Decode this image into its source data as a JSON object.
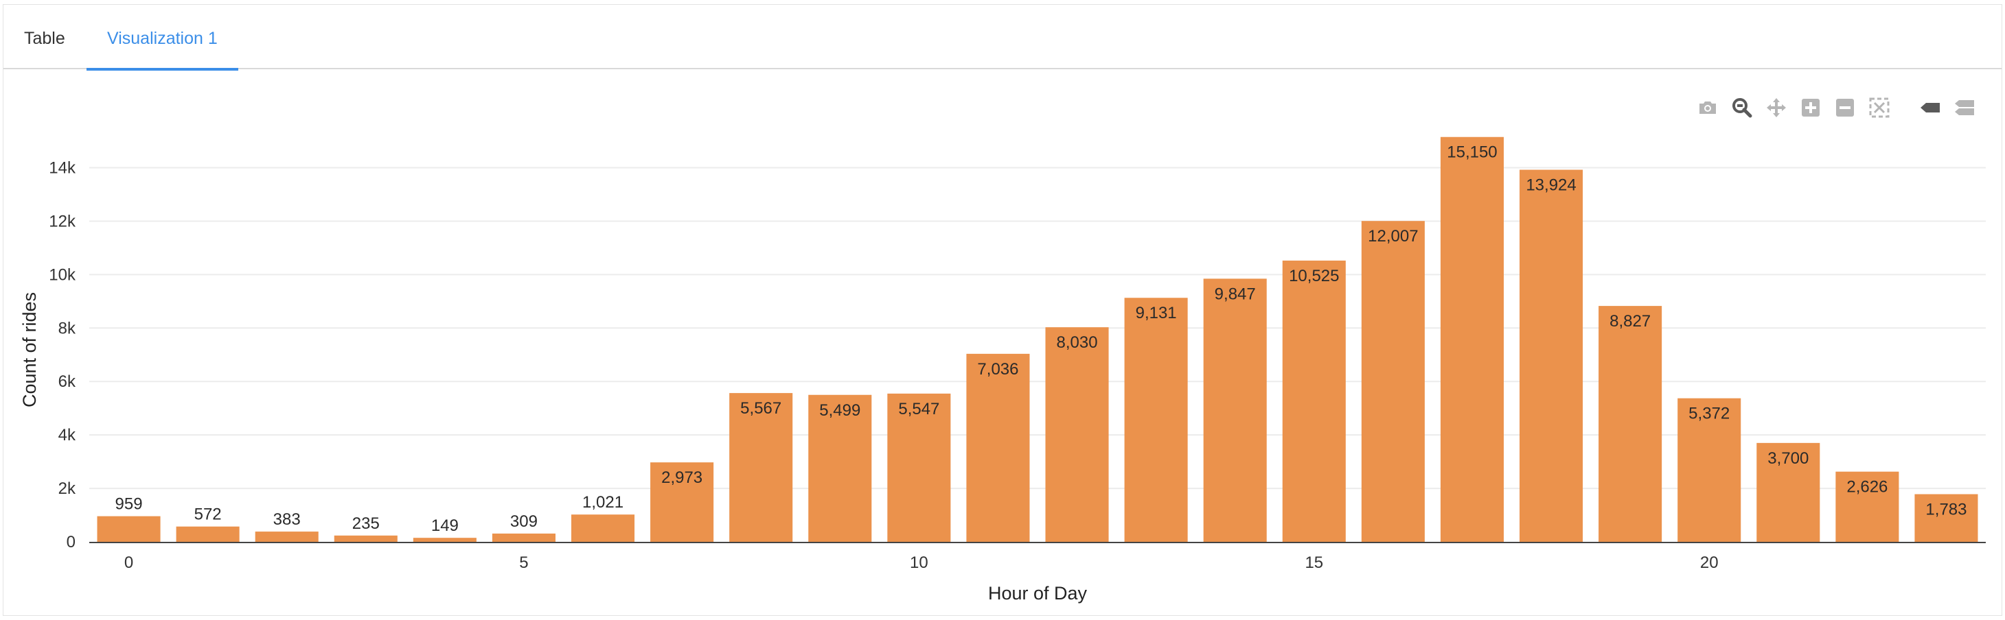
{
  "tabs": [
    {
      "label": "Table",
      "active": false
    },
    {
      "label": "Visualization 1",
      "active": true
    }
  ],
  "toolbar": {
    "icons": [
      "camera-icon",
      "zoom-icon",
      "pan-icon",
      "zoom-in-icon",
      "zoom-out-icon",
      "autoscale-icon",
      "spike-lines-icon",
      "compare-hover-icon"
    ]
  },
  "colors": {
    "bar": "#eb924c",
    "accent": "#3b8ee8",
    "grid": "#ececec",
    "icon": "#b5b5b5"
  },
  "chart_data": {
    "type": "bar",
    "x": [
      0,
      1,
      2,
      3,
      4,
      5,
      6,
      7,
      8,
      9,
      10,
      11,
      12,
      13,
      14,
      15,
      16,
      17,
      18,
      19,
      20,
      21,
      22,
      23
    ],
    "values": [
      959,
      572,
      383,
      235,
      149,
      309,
      1021,
      2973,
      5567,
      5499,
      5547,
      7036,
      8030,
      9131,
      9847,
      10525,
      12007,
      15150,
      13924,
      8827,
      5372,
      3700,
      2626,
      1783
    ],
    "data_labels": [
      "959",
      "572",
      "383",
      "235",
      "149",
      "309",
      "1,021",
      "2,973",
      "5,567",
      "5,499",
      "5,547",
      "7,036",
      "8,030",
      "9,131",
      "9,847",
      "10,525",
      "12,007",
      "15,150",
      "13,924",
      "8,827",
      "5,372",
      "3,700",
      "2,626",
      "1,783"
    ],
    "xlabel": "Hour of Day",
    "ylabel": "Count of rides",
    "xticks": [
      0,
      5,
      10,
      15,
      20
    ],
    "xtick_labels": [
      "0",
      "5",
      "10",
      "15",
      "20"
    ],
    "yticks": [
      0,
      2000,
      4000,
      6000,
      8000,
      10000,
      12000,
      14000
    ],
    "ytick_labels": [
      "0",
      "2k",
      "4k",
      "6k",
      "8k",
      "10k",
      "12k",
      "14k"
    ],
    "ylim": [
      0,
      15400
    ],
    "xlim": [
      -0.5,
      23.5
    ],
    "grid": true,
    "legend": "none"
  }
}
